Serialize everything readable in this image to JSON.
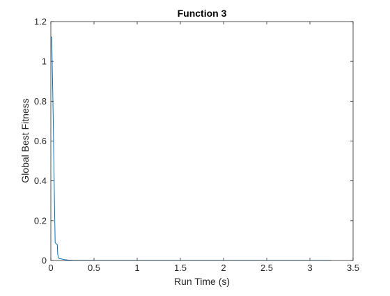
{
  "chart_data": {
    "type": "line",
    "title": "Function 3",
    "xlabel": "Run Time (s)",
    "ylabel": "Global Best Fitness",
    "xlim": [
      0,
      3.5
    ],
    "ylim": [
      0,
      1.2
    ],
    "x_ticks": [
      0,
      0.5,
      1,
      1.5,
      2,
      2.5,
      3,
      3.5
    ],
    "x_tick_labels": [
      "0",
      "0.5",
      "1",
      "1.5",
      "2",
      "2.5",
      "3",
      "3.5"
    ],
    "y_ticks": [
      0,
      0.2,
      0.4,
      0.6,
      0.8,
      1,
      1.2
    ],
    "y_tick_labels": [
      "0",
      "0.2",
      "0.4",
      "0.6",
      "0.8",
      "1",
      "1.2"
    ],
    "grid": false,
    "box": true,
    "series": [
      {
        "color": "#0072BD",
        "x": [
          0.0,
          0.01,
          0.02,
          0.03,
          0.04,
          0.05,
          0.06,
          0.075,
          0.08,
          0.09,
          0.1,
          0.12,
          0.15,
          0.2,
          0.25,
          0.35,
          0.6,
          1.0,
          1.5,
          2.0,
          2.5,
          3.0,
          3.25
        ],
        "y": [
          1.125,
          1.12,
          0.9,
          0.65,
          0.35,
          0.09,
          0.085,
          0.08,
          0.03,
          0.012,
          0.01,
          0.008,
          0.005,
          0.002,
          0.001,
          0.0005,
          0.0002,
          0.0001,
          0.0001,
          0.0,
          0.0,
          0.0,
          0.0
        ]
      }
    ]
  }
}
